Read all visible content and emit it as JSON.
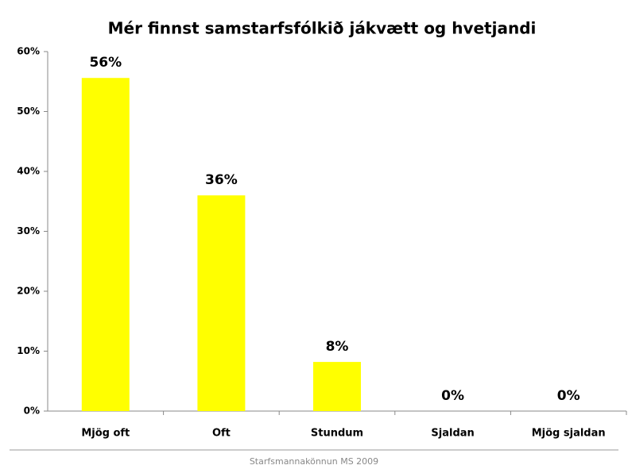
{
  "chart_data": {
    "type": "bar",
    "title": "Mér finnst samstarfsfólkið jákvætt og hvetjandi",
    "categories": [
      "Mjög oft",
      "Oft",
      "Stundum",
      "Sjaldan",
      "Mjög sjaldan"
    ],
    "values": [
      55.6,
      36.0,
      8.2,
      0,
      0
    ],
    "value_labels": [
      "56%",
      "36%",
      "8%",
      "0%",
      "0%"
    ],
    "color": "#ffff00",
    "ylim": [
      0,
      60
    ],
    "yticks": [
      {
        "value": 0,
        "label": "0%"
      },
      {
        "value": 10,
        "label": "10%"
      },
      {
        "value": 20,
        "label": "20%"
      },
      {
        "value": 30,
        "label": "30%"
      },
      {
        "value": 40,
        "label": "40%"
      },
      {
        "value": 50,
        "label": "50%"
      },
      {
        "value": 60,
        "label": "60%"
      }
    ],
    "grid": false
  },
  "footer": "Starfsmannakönnun MS 2009"
}
